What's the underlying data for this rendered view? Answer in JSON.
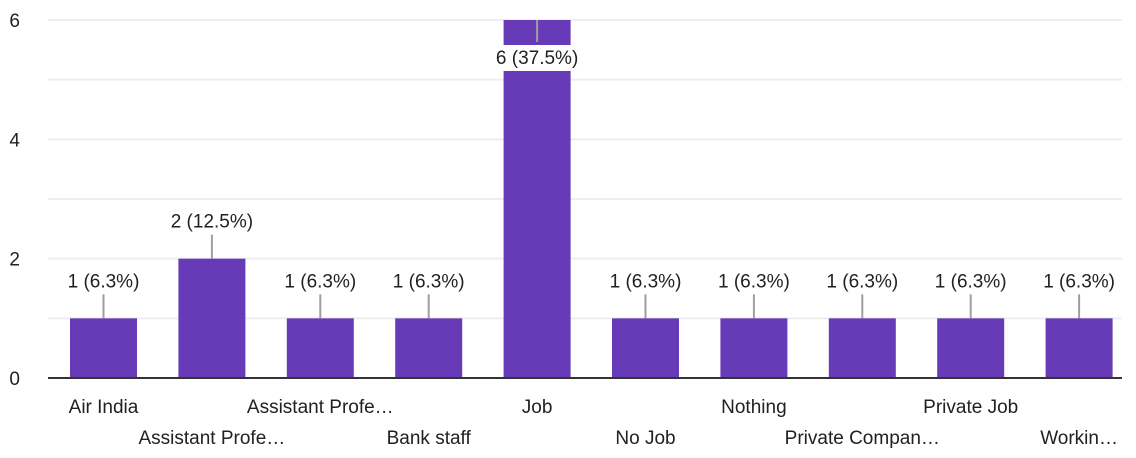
{
  "chart_data": {
    "type": "bar",
    "categories": [
      "Air India",
      "Assistant Profe…",
      "Assistant Profe…",
      "Bank staff",
      "Job",
      "No Job",
      "Nothing",
      "Private Compan…",
      "Private Job",
      "Workin…"
    ],
    "values": [
      1,
      2,
      1,
      1,
      6,
      1,
      1,
      1,
      1,
      1
    ],
    "data_labels": [
      "1 (6.3%)",
      "2 (12.5%)",
      "1 (6.3%)",
      "1 (6.3%)",
      "6 (37.5%)",
      "1 (6.3%)",
      "1 (6.3%)",
      "1 (6.3%)",
      "1 (6.3%)",
      "1 (6.3%)"
    ],
    "y_ticks": [
      "0",
      "2",
      "4",
      "6"
    ],
    "ylim": [
      0,
      6
    ],
    "grid": true,
    "bar_color": "#673ab7",
    "grid_color": "#eeeeee",
    "axis_color": "#333333",
    "text_color": "#212121"
  }
}
